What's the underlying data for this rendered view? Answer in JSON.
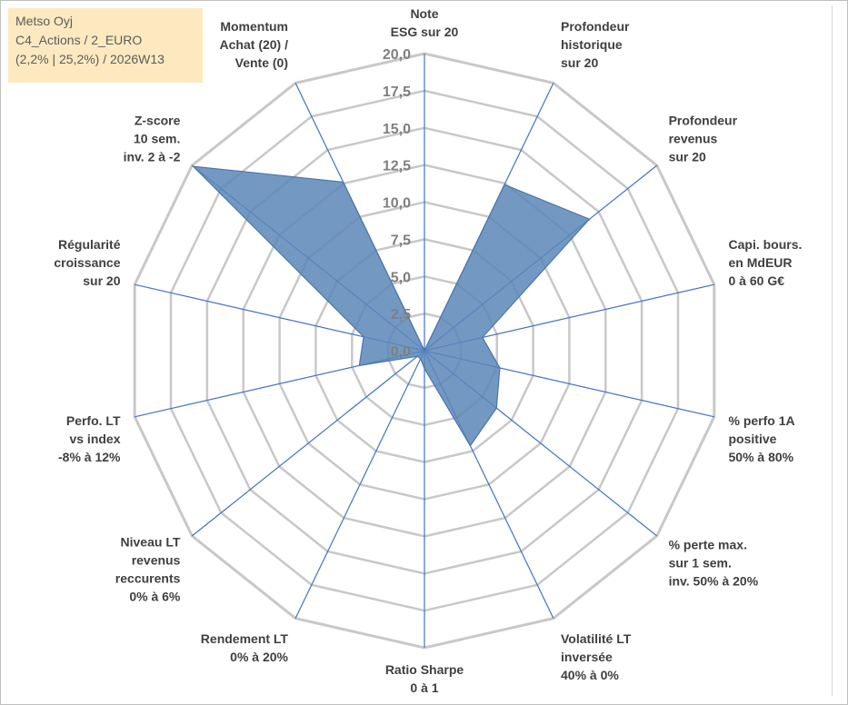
{
  "info": {
    "name": "Metso Oyj",
    "category": "C4_Actions / 2_EURO",
    "stats": "(2,2% | 25,2%) / 2026W13"
  },
  "colors": {
    "fill": "#5b87b9",
    "stroke": "#4a75aa",
    "spoke": "#4472c4",
    "grid": "#c8c8c8",
    "info_bg": "#fde9c0"
  },
  "chart_data": {
    "type": "radar",
    "title": "",
    "rmax": 20,
    "ticks": [
      "0,0",
      "2,5",
      "5,0",
      "7,5",
      "10,0",
      "12,5",
      "15,0",
      "17,5",
      "20,0"
    ],
    "tick_values": [
      0,
      2.5,
      5,
      7.5,
      10,
      12.5,
      15,
      17.5,
      20
    ],
    "grid_levels": [
      2.5,
      5,
      7.5,
      10,
      12.5,
      15,
      17.5,
      20
    ],
    "axes": [
      {
        "label": [
          "Note",
          "ESG sur 20"
        ],
        "value": 0
      },
      {
        "label": [
          "Profondeur",
          "historique",
          "sur 20"
        ],
        "value": 12.4
      },
      {
        "label": [
          "Profondeur",
          "revenus",
          "sur 20"
        ],
        "value": 14.2
      },
      {
        "label": [
          "Capi. bours.",
          "en MdEUR",
          "0 à 60 G€"
        ],
        "value": 4.0
      },
      {
        "label": [
          "% perfo 1A",
          "positive",
          "50% à 80%"
        ],
        "value": 5.2
      },
      {
        "label": [
          "% perte max.",
          "sur 1 sem.",
          "inv. 50% à 20%"
        ],
        "value": 6.2
      },
      {
        "label": [
          "Volatilité LT",
          "inversée",
          "40% à 0%"
        ],
        "value": 7.1
      },
      {
        "label": [
          "Ratio Sharpe",
          "0 à 1"
        ],
        "value": 1.2
      },
      {
        "label": [
          "Rendement LT",
          "0% à 20%"
        ],
        "value": 0.6
      },
      {
        "label": [
          "Niveau LT",
          "revenus",
          "reccurents",
          "0% à 6%"
        ],
        "value": 0.6
      },
      {
        "label": [
          "Perfo. LT",
          "vs index",
          "-8% à 12%"
        ],
        "value": 4.5
      },
      {
        "label": [
          "Régularité",
          "croissance",
          "sur 20"
        ],
        "value": 4.2
      },
      {
        "label": [
          "Z-score",
          "10 sem.",
          "inv. 2 à -2"
        ],
        "value": 19.9
      },
      {
        "label": [
          "Momentum",
          "Achat (20) /",
          "Vente (0)"
        ],
        "value": 12.6
      }
    ]
  }
}
